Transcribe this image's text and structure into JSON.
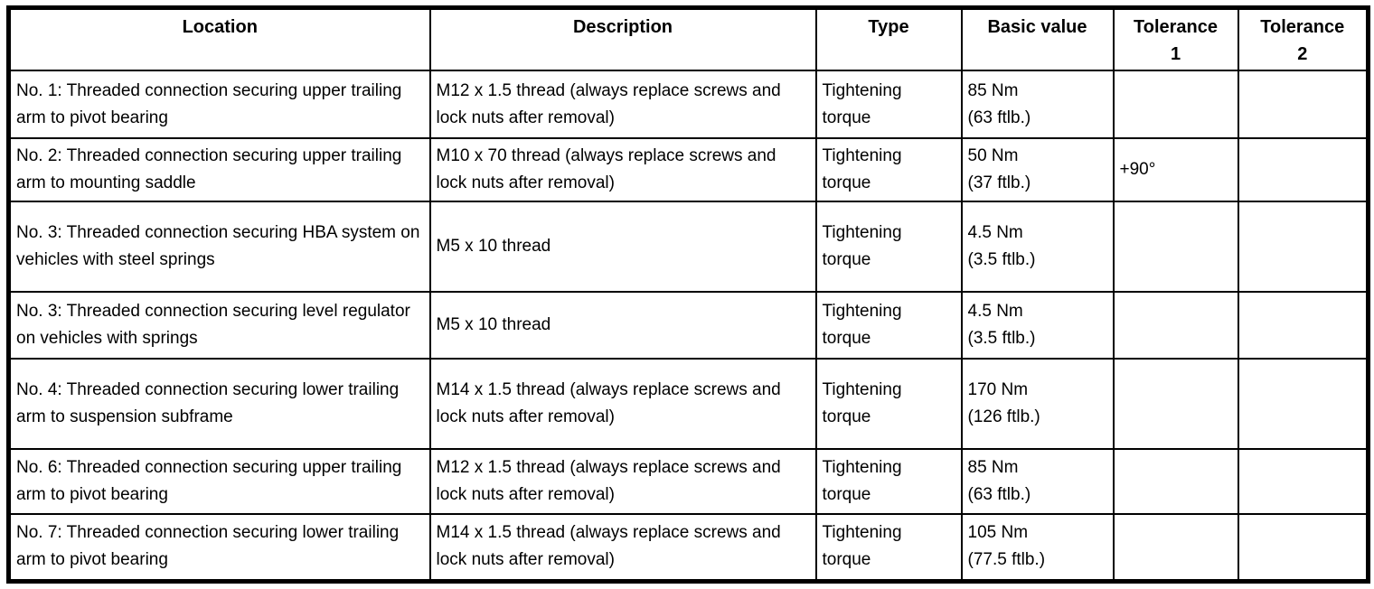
{
  "table": {
    "columns": [
      {
        "label": "Location"
      },
      {
        "label": "Description"
      },
      {
        "label": "Type"
      },
      {
        "label": "Basic value"
      },
      {
        "label": "Tolerance\n1"
      },
      {
        "label": "Tolerance\n2"
      }
    ],
    "rows": [
      {
        "location": "No. 1: Threaded connection securing upper trailing arm to pivot bearing",
        "description": "M12 x 1.5 thread (always replace screws and lock nuts after removal)",
        "type": "Tightening torque",
        "basic_value": "85 Nm\n(63 ftlb.)",
        "tolerance_1": "",
        "tolerance_2": ""
      },
      {
        "location": "No. 2: Threaded connection securing upper trailing arm to mounting saddle",
        "description": "M10 x 70 thread (always replace screws and lock nuts after removal)",
        "type": "Tightening torque",
        "basic_value": "50 Nm\n(37 ftlb.)",
        "tolerance_1": "+90°",
        "tolerance_2": ""
      },
      {
        "location": "No. 3: Threaded connection securing HBA system on vehicles with steel springs",
        "description": "M5 x 10 thread",
        "type": "Tightening torque",
        "basic_value": "4.5 Nm\n(3.5 ftlb.)",
        "tolerance_1": "",
        "tolerance_2": ""
      },
      {
        "location": "No. 3: Threaded connection securing level regulator on vehicles with springs",
        "description": "M5 x 10 thread",
        "type": "Tightening torque",
        "basic_value": "4.5 Nm\n(3.5 ftlb.)",
        "tolerance_1": "",
        "tolerance_2": ""
      },
      {
        "location": "No. 4: Threaded connection securing lower trailing arm to suspension subframe",
        "description": "M14 x 1.5 thread (always replace screws and lock nuts after removal)",
        "type": "Tightening torque",
        "basic_value": "170 Nm\n(126 ftlb.)",
        "tolerance_1": "",
        "tolerance_2": ""
      },
      {
        "location": "No. 6: Threaded connection securing upper trailing arm to pivot bearing",
        "description": "M12 x 1.5 thread (always replace screws and lock nuts after removal)",
        "type": "Tightening torque",
        "basic_value": "85 Nm\n(63 ftlb.)",
        "tolerance_1": "",
        "tolerance_2": ""
      },
      {
        "location": "No. 7: Threaded connection securing lower trailing arm to pivot bearing",
        "description": "M14 x 1.5 thread (always replace screws and lock nuts after removal)",
        "type": "Tightening torque",
        "basic_value": "105 Nm\n(77.5 ftlb.)",
        "tolerance_1": "",
        "tolerance_2": ""
      }
    ]
  }
}
